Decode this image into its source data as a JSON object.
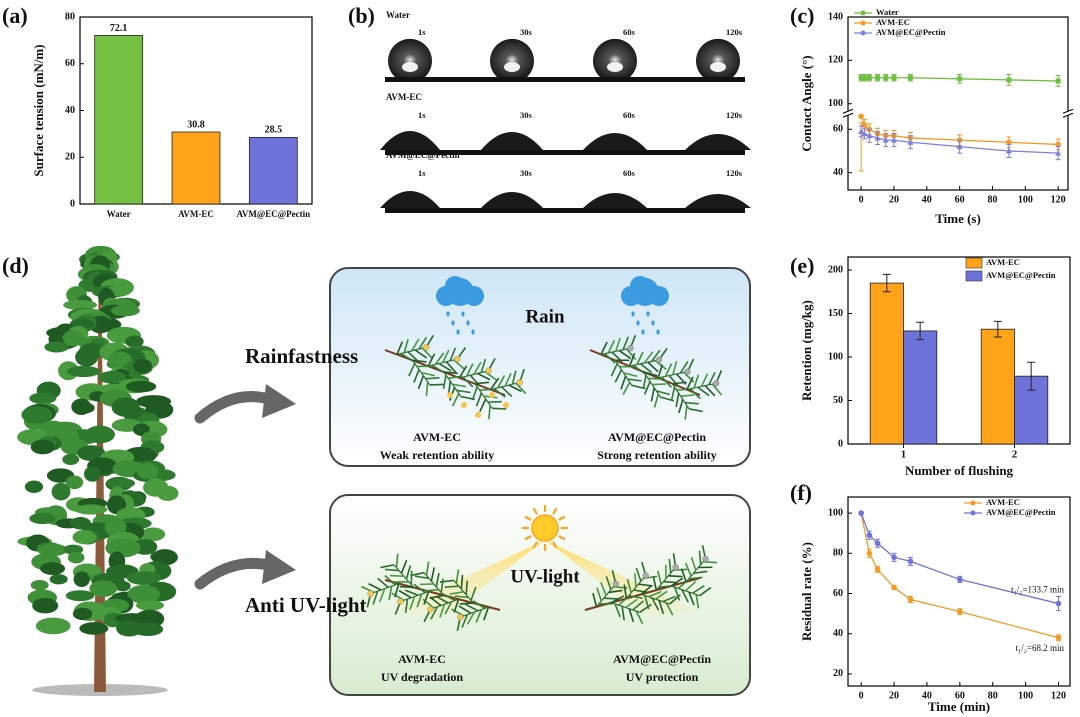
{
  "panel_labels": [
    "(a)",
    "(b)",
    "(c)",
    "(d)",
    "(e)",
    "(f)"
  ],
  "chart_data": [
    {
      "type": "bar",
      "ylabel": "Surface tension (mN/m)",
      "categories": [
        "Water",
        "AVM-EC",
        "AVM@EC@Pectin"
      ],
      "values": [
        72.1,
        30.8,
        28.5
      ],
      "colors": [
        "#76c043",
        "#ffa31a",
        "#6e73d9"
      ],
      "ylim": [
        0,
        80
      ],
      "yticks": [
        0,
        20,
        40,
        60,
        80
      ]
    },
    {
      "type": "line",
      "xlabel": "Time (s)",
      "ylabel": "Contact Angle (°)",
      "x": [
        0,
        2,
        5,
        10,
        15,
        20,
        30,
        60,
        90,
        120
      ],
      "series": [
        {
          "name": "Water",
          "color": "#6cbf3f",
          "marker": "square",
          "values": [
            112,
            112,
            112,
            112,
            112,
            112,
            112,
            111.5,
            111,
            110.5
          ],
          "errors": [
            1.5,
            1.5,
            1.5,
            1.5,
            1.5,
            1.5,
            1.5,
            2,
            2.5,
            2.5
          ]
        },
        {
          "name": "AVM-EC",
          "color": "#f39a24",
          "marker": "circle",
          "values": [
            66,
            62,
            60,
            58,
            57,
            57,
            56,
            55,
            54,
            53
          ],
          "errors": [
            3,
            2.5,
            2.5,
            2.5,
            2.5,
            2.5,
            2.5,
            2.5,
            2.5,
            2.5
          ]
        },
        {
          "name": "AVM@EC@Pectin",
          "color": "#7c80dc",
          "marker": "triangle",
          "values": [
            59,
            58,
            57,
            56,
            55,
            55,
            54,
            52,
            50,
            49
          ],
          "errors": [
            2.5,
            2.5,
            3,
            3,
            3,
            3,
            3,
            3,
            3,
            3
          ]
        }
      ],
      "xlim": [
        -8,
        126
      ],
      "xticks": [
        0,
        20,
        40,
        60,
        80,
        100,
        120
      ],
      "ylim": [
        32,
        140
      ],
      "ybreak": [
        66,
        97
      ],
      "yticks": [
        40,
        60,
        100,
        120,
        140
      ],
      "legend": "upper left"
    },
    {
      "type": "bar",
      "xlabel": "Number of flushing",
      "ylabel": "Retention (mg/kg)",
      "categories": [
        "1",
        "2"
      ],
      "series": [
        {
          "name": "AVM-EC",
          "color": "#ffa31a",
          "values": [
            185,
            132
          ],
          "errors": [
            10,
            9
          ]
        },
        {
          "name": "AVM@EC@Pectin",
          "color": "#6e73d9",
          "values": [
            130,
            78
          ],
          "errors": [
            10,
            16
          ]
        }
      ],
      "ylim": [
        0,
        215
      ],
      "yticks": [
        0,
        50,
        100,
        150,
        200
      ],
      "legend": "upper right"
    },
    {
      "type": "line",
      "xlabel": "Time (min)",
      "ylabel": "Residual rate (%)",
      "x": [
        0,
        5,
        10,
        20,
        30,
        60,
        120
      ],
      "series": [
        {
          "name": "AVM-EC",
          "color": "#f39a24",
          "marker": "circle",
          "values": [
            100,
            80,
            72,
            63,
            57,
            51,
            38
          ],
          "errors": [
            0,
            2,
            1.5,
            1,
            1.5,
            1.5,
            1.5
          ],
          "annotation": "t₁/₂=68.2 min"
        },
        {
          "name": "AVM@EC@Pectin",
          "color": "#6e73d9",
          "marker": "circle",
          "values": [
            100,
            89,
            85,
            78,
            76,
            67,
            55
          ],
          "errors": [
            0,
            2,
            2,
            2,
            2,
            1.5,
            3.5
          ],
          "annotation": "t₁/₂=133.7 min"
        }
      ],
      "xlim": [
        -8,
        127
      ],
      "xticks": [
        0,
        20,
        40,
        60,
        80,
        100,
        120
      ],
      "ylim": [
        14,
        108
      ],
      "yticks": [
        20,
        40,
        60,
        80,
        100
      ],
      "legend": "upper right"
    }
  ],
  "panel_b": {
    "rows": [
      {
        "name": "Water",
        "times": [
          "1s",
          "30s",
          "60s",
          "120s"
        ]
      },
      {
        "name": "AVM-EC",
        "times": [
          "1s",
          "30s",
          "60s",
          "120s"
        ]
      },
      {
        "name": "AVM@EC@Pectin",
        "times": [
          "1s",
          "30s",
          "60s",
          "120s"
        ]
      }
    ]
  },
  "panel_d": {
    "left_labels": [
      "Rainfastness",
      "Anti UV-light"
    ],
    "rain_box": {
      "title": "Rain",
      "left": [
        "AVM-EC",
        "Weak retention ability"
      ],
      "right": [
        "AVM@EC@Pectin",
        "Strong retention ability"
      ]
    },
    "uv_box": {
      "title": "UV-light",
      "left": [
        "AVM-EC",
        "UV degradation"
      ],
      "right": [
        "AVM@EC@Pectin",
        "UV protection"
      ]
    }
  }
}
